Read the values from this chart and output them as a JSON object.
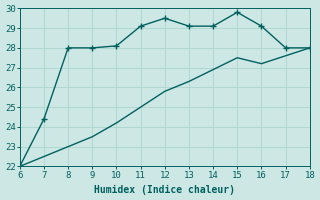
{
  "xlabel": "Humidex (Indice chaleur)",
  "ylabel": "",
  "bg_color": "#cde8e4",
  "grid_color": "#b0d8d0",
  "line_color": "#006060",
  "x_upper": [
    6,
    7,
    8,
    9,
    10,
    11,
    12,
    13,
    14,
    15,
    16,
    17,
    18
  ],
  "y_upper": [
    22.0,
    24.4,
    28.0,
    28.0,
    28.1,
    29.1,
    29.5,
    29.1,
    29.1,
    29.8,
    29.1,
    28.0,
    28.0
  ],
  "x_lower": [
    6,
    7,
    8,
    9,
    10,
    11,
    12,
    13,
    14,
    15,
    16,
    17,
    18
  ],
  "y_lower": [
    22.0,
    22.5,
    23.0,
    23.5,
    24.2,
    25.0,
    25.8,
    26.3,
    26.9,
    27.5,
    27.2,
    27.6,
    28.0
  ],
  "ylim": [
    22,
    30
  ],
  "xlim": [
    6,
    18
  ],
  "yticks": [
    22,
    23,
    24,
    25,
    26,
    27,
    28,
    29,
    30
  ],
  "xticks": [
    6,
    7,
    8,
    9,
    10,
    11,
    12,
    13,
    14,
    15,
    16,
    17,
    18
  ],
  "font_family": "monospace",
  "xlabel_fontsize": 7,
  "tick_fontsize": 6.5
}
